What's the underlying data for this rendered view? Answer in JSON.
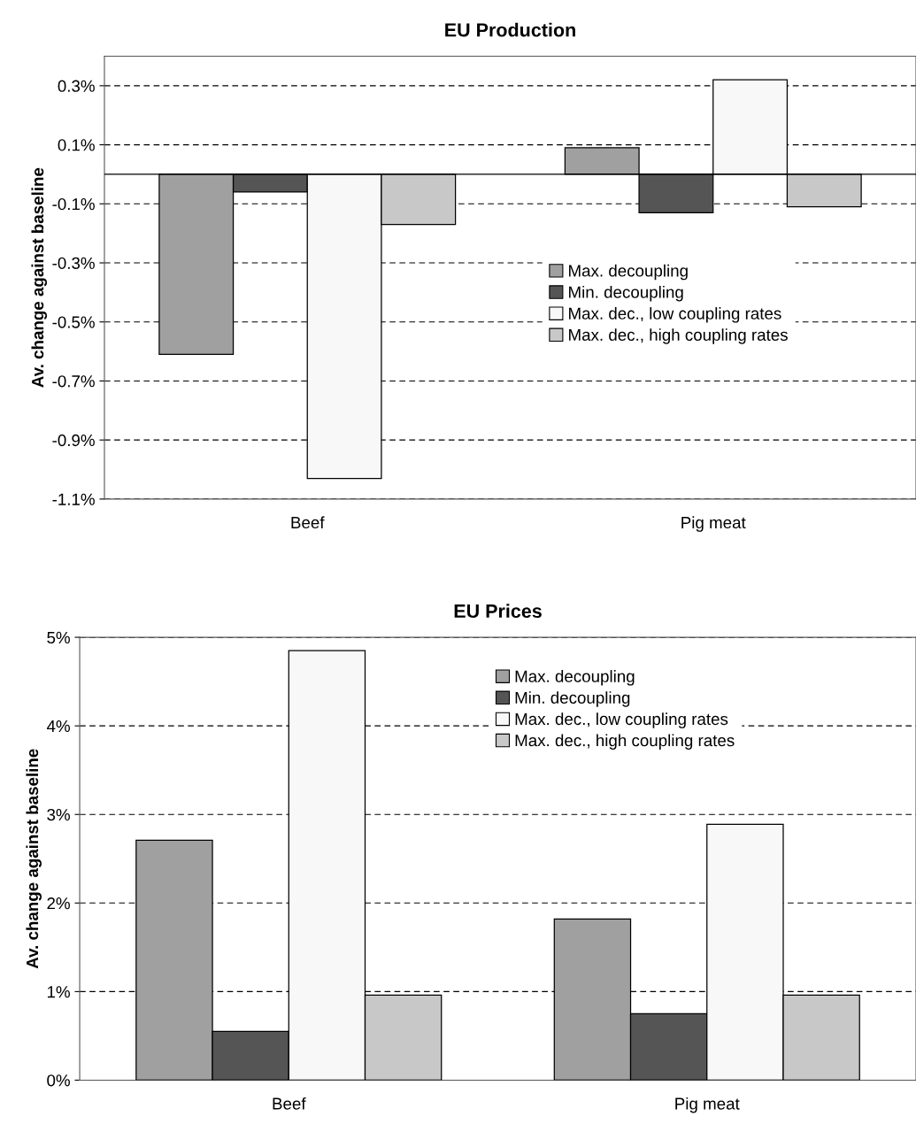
{
  "chart_data": [
    {
      "type": "bar",
      "title": "EU Production",
      "ylabel": "Av. change against baseline",
      "categories": [
        "Beef",
        "Pig meat"
      ],
      "series": [
        {
          "name": "Max. decoupling",
          "color": "#a0a0a0",
          "values": [
            -0.61,
            0.09
          ]
        },
        {
          "name": "Min. decoupling",
          "color": "#555555",
          "values": [
            -0.06,
            -0.13
          ]
        },
        {
          "name": "Max. dec., low coupling rates",
          "color": "#f8f8f8",
          "values": [
            -1.03,
            0.32
          ]
        },
        {
          "name": "Max. dec., high coupling rates",
          "color": "#c8c8c8",
          "values": [
            -0.17,
            -0.11
          ]
        }
      ],
      "ylim": [
        -1.1,
        0.4
      ],
      "yticks": [
        {
          "value": -1.1,
          "label": "-1.1%"
        },
        {
          "value": -0.9,
          "label": "-0.9%"
        },
        {
          "value": -0.7,
          "label": "-0.7%"
        },
        {
          "value": -0.5,
          "label": "-0.5%"
        },
        {
          "value": -0.3,
          "label": "-0.3%"
        },
        {
          "value": -0.1,
          "label": "-0.1%"
        },
        {
          "value": 0.1,
          "label": "0.1%"
        },
        {
          "value": 0.3,
          "label": "0.3%"
        }
      ],
      "grid": "y",
      "legend": "right"
    },
    {
      "type": "bar",
      "title": "EU Prices",
      "ylabel": "Av. change against baseline",
      "categories": [
        "Beef",
        "Pig meat"
      ],
      "series": [
        {
          "name": "Max. decoupling",
          "color": "#a0a0a0",
          "values": [
            2.71,
            1.82
          ]
        },
        {
          "name": "Min. decoupling",
          "color": "#555555",
          "values": [
            0.55,
            0.75
          ]
        },
        {
          "name": "Max. dec., low coupling rates",
          "color": "#f8f8f8",
          "values": [
            4.85,
            2.89
          ]
        },
        {
          "name": "Max. dec., high coupling rates",
          "color": "#c8c8c8",
          "values": [
            0.96,
            0.96
          ]
        }
      ],
      "ylim": [
        0,
        5
      ],
      "yticks": [
        {
          "value": 0,
          "label": "0%"
        },
        {
          "value": 1,
          "label": "1%"
        },
        {
          "value": 2,
          "label": "2%"
        },
        {
          "value": 3,
          "label": "3%"
        },
        {
          "value": 4,
          "label": "4%"
        },
        {
          "value": 5,
          "label": "5%"
        }
      ],
      "grid": "y",
      "legend": "top"
    }
  ]
}
